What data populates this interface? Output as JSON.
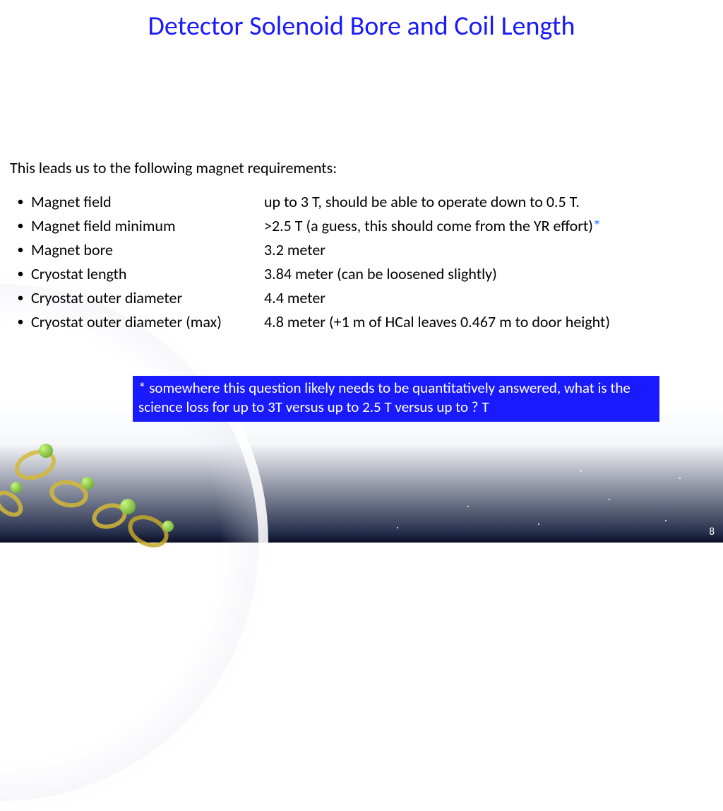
{
  "title": "Detector Solenoid Bore and Coil Length",
  "intro": "This leads us to the following magnet requirements:",
  "requirements": [
    {
      "label": "Magnet field",
      "value": "up to 3 T, should be able to operate down to 0.5 T.",
      "asterisk": false
    },
    {
      "label": "Magnet field minimum",
      "value": ">2.5 T (a guess, this should come from the YR effort)",
      "asterisk": true
    },
    {
      "label": "Magnet bore",
      "value": "3.2 meter",
      "asterisk": false
    },
    {
      "label": "Cryostat length",
      "value": "3.84 meter (can be loosened slightly)",
      "asterisk": false
    },
    {
      "label": "Cryostat outer diameter",
      "value": "4.4 meter",
      "asterisk": false
    },
    {
      "label": "Cryostat outer diameter (max)",
      "value": "4.8 meter (+1 m of HCal leaves 0.467 m to door height)",
      "asterisk": false
    }
  ],
  "note": "* somewhere this question likely needs to be quantitatively answered, what is the science loss for up to 3T versus up to 2.5 T versus up to ? T",
  "page_number": "8",
  "colors": {
    "title_color": "#1a1aff",
    "note_bg": "#1a1aff",
    "note_text": "#ffffff",
    "asterisk_color": "#1a6aff",
    "body_text": "#000000"
  }
}
